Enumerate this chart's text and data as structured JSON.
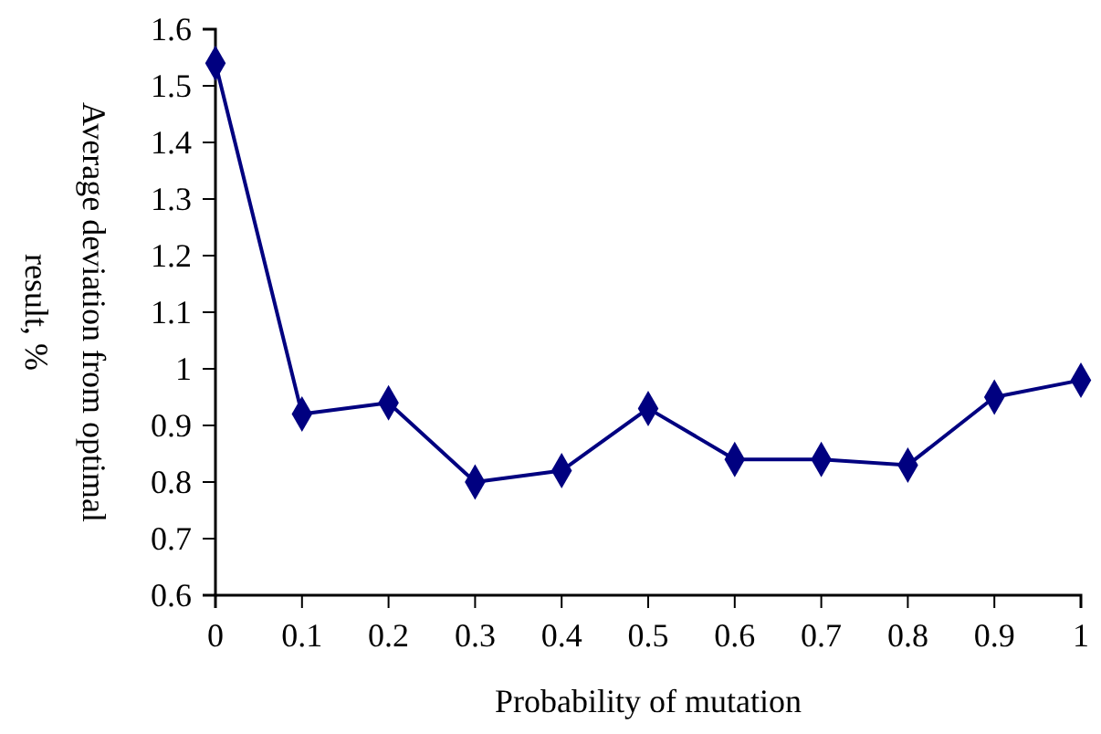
{
  "chart_data": {
    "type": "line",
    "xlabel": "Probability of mutation",
    "ylabel": "Average deviation from optimal\nresult, %",
    "x": [
      0,
      0.1,
      0.2,
      0.3,
      0.4,
      0.5,
      0.6,
      0.7,
      0.8,
      0.9,
      1
    ],
    "series": [
      {
        "color": "#000080",
        "values": [
          1.54,
          0.92,
          0.94,
          0.8,
          0.82,
          0.93,
          0.84,
          0.84,
          0.83,
          0.95,
          0.98
        ]
      }
    ],
    "xlim": [
      0,
      1
    ],
    "xticks": [
      0,
      0.1,
      0.2,
      0.3,
      0.4,
      0.5,
      0.6,
      0.7,
      0.8,
      0.9,
      1
    ],
    "ylim": [
      0.6,
      1.6
    ],
    "yticks": [
      0.6,
      0.7,
      0.8,
      0.9,
      1,
      1.1,
      1.2,
      1.3,
      1.4,
      1.5,
      1.6
    ],
    "marker": "diamond",
    "line_style": "solid",
    "grid": false
  }
}
